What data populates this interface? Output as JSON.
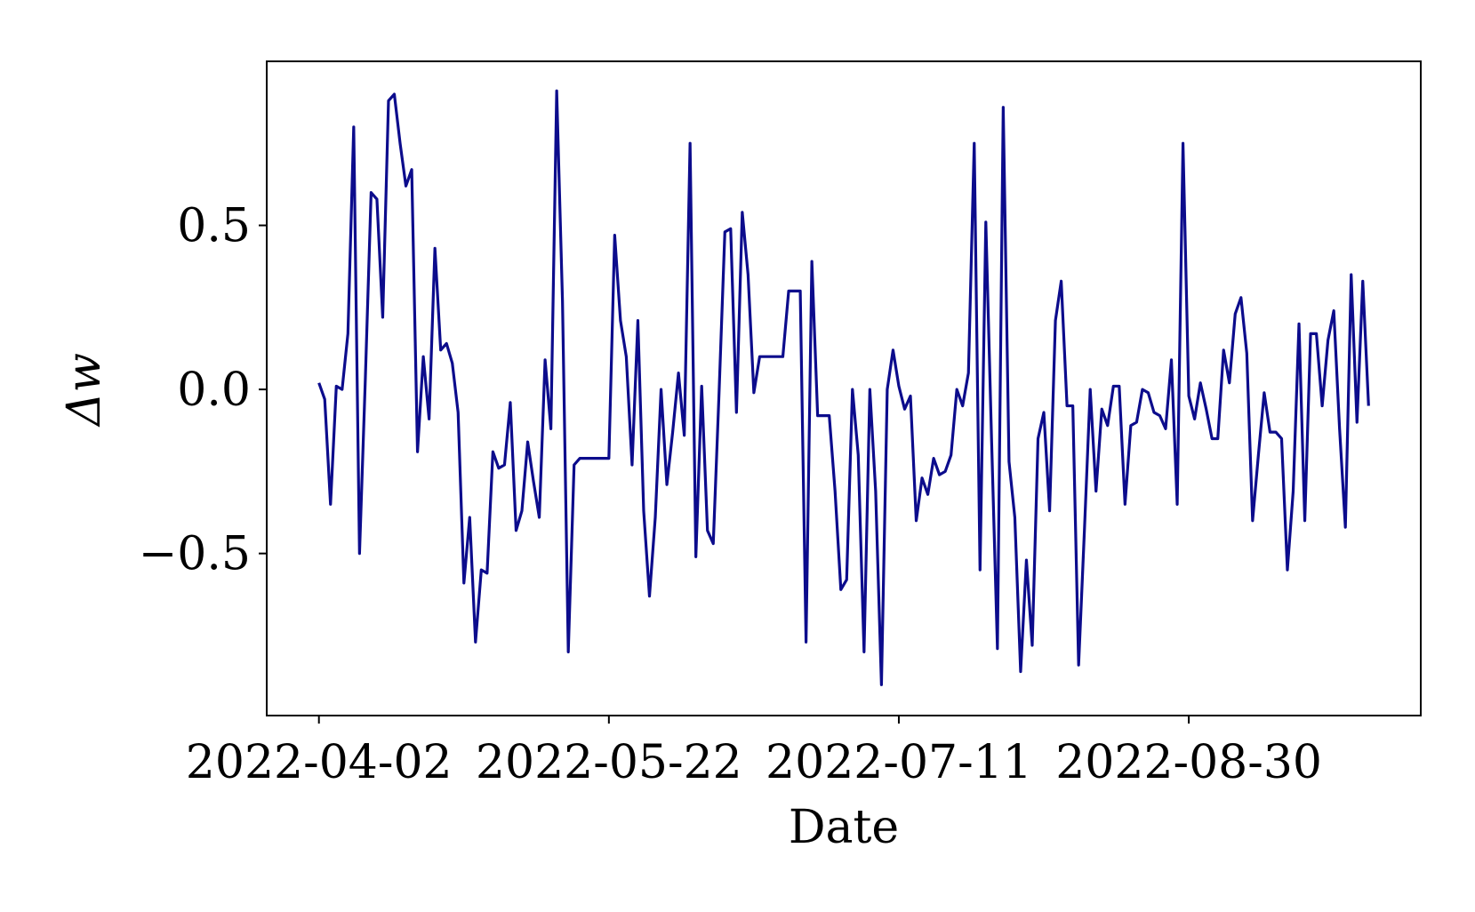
{
  "chart_data": {
    "type": "line",
    "xlabel": "Date",
    "ylabel": "Δw",
    "x": [
      "2022-04-02",
      "2022-04-03",
      "2022-04-04",
      "2022-04-05",
      "2022-04-06",
      "2022-04-07",
      "2022-04-08",
      "2022-04-09",
      "2022-04-10",
      "2022-04-11",
      "2022-04-12",
      "2022-04-13",
      "2022-04-14",
      "2022-04-15",
      "2022-04-16",
      "2022-04-17",
      "2022-04-18",
      "2022-04-19",
      "2022-04-20",
      "2022-04-21",
      "2022-04-22",
      "2022-04-23",
      "2022-04-24",
      "2022-04-25",
      "2022-04-26",
      "2022-04-27",
      "2022-04-28",
      "2022-04-29",
      "2022-04-30",
      "2022-05-01",
      "2022-05-02",
      "2022-05-03",
      "2022-05-04",
      "2022-05-05",
      "2022-05-06",
      "2022-05-07",
      "2022-05-08",
      "2022-05-09",
      "2022-05-10",
      "2022-05-11",
      "2022-05-12",
      "2022-05-13",
      "2022-05-14",
      "2022-05-15",
      "2022-05-16",
      "2022-05-17",
      "2022-05-18",
      "2022-05-19",
      "2022-05-20",
      "2022-05-21",
      "2022-05-22",
      "2022-05-23",
      "2022-05-24",
      "2022-05-25",
      "2022-05-26",
      "2022-05-27",
      "2022-05-28",
      "2022-05-29",
      "2022-05-30",
      "2022-05-31",
      "2022-06-01",
      "2022-06-02",
      "2022-06-03",
      "2022-06-04",
      "2022-06-05",
      "2022-06-06",
      "2022-06-07",
      "2022-06-08",
      "2022-06-09",
      "2022-06-10",
      "2022-06-11",
      "2022-06-12",
      "2022-06-13",
      "2022-06-14",
      "2022-06-15",
      "2022-06-16",
      "2022-06-17",
      "2022-06-18",
      "2022-06-19",
      "2022-06-20",
      "2022-06-21",
      "2022-06-22",
      "2022-06-23",
      "2022-06-24",
      "2022-06-25",
      "2022-06-26",
      "2022-06-27",
      "2022-06-28",
      "2022-06-29",
      "2022-06-30",
      "2022-07-01",
      "2022-07-02",
      "2022-07-03",
      "2022-07-04",
      "2022-07-05",
      "2022-07-06",
      "2022-07-07",
      "2022-07-08",
      "2022-07-09",
      "2022-07-10",
      "2022-07-11",
      "2022-07-12",
      "2022-07-13",
      "2022-07-14",
      "2022-07-15",
      "2022-07-16",
      "2022-07-17",
      "2022-07-18",
      "2022-07-19",
      "2022-07-20",
      "2022-07-21",
      "2022-07-22",
      "2022-07-23",
      "2022-07-24",
      "2022-07-25",
      "2022-07-26",
      "2022-07-27",
      "2022-07-28",
      "2022-07-29",
      "2022-07-30",
      "2022-07-31",
      "2022-08-01",
      "2022-08-02",
      "2022-08-03",
      "2022-08-04",
      "2022-08-05",
      "2022-08-06",
      "2022-08-07",
      "2022-08-08",
      "2022-08-09",
      "2022-08-10",
      "2022-08-11",
      "2022-08-12",
      "2022-08-13",
      "2022-08-14",
      "2022-08-15",
      "2022-08-16",
      "2022-08-17",
      "2022-08-18",
      "2022-08-19",
      "2022-08-20",
      "2022-08-21",
      "2022-08-22",
      "2022-08-23",
      "2022-08-24",
      "2022-08-25",
      "2022-08-26",
      "2022-08-27",
      "2022-08-28",
      "2022-08-29",
      "2022-08-30",
      "2022-08-31",
      "2022-09-01",
      "2022-09-02",
      "2022-09-03",
      "2022-09-04",
      "2022-09-05",
      "2022-09-06",
      "2022-09-07",
      "2022-09-08",
      "2022-09-09",
      "2022-09-10",
      "2022-09-11",
      "2022-09-12",
      "2022-09-13",
      "2022-09-14",
      "2022-09-15",
      "2022-09-16",
      "2022-09-17",
      "2022-09-18",
      "2022-09-19",
      "2022-09-20",
      "2022-09-21",
      "2022-09-22",
      "2022-09-23",
      "2022-09-24",
      "2022-09-25",
      "2022-09-26",
      "2022-09-27",
      "2022-09-28",
      "2022-09-29",
      "2022-09-30"
    ],
    "series": [
      {
        "color": "#0c0c8c",
        "values": [
          0.02,
          -0.03,
          -0.35,
          0.01,
          0.0,
          0.17,
          0.8,
          -0.5,
          0.03,
          0.6,
          0.58,
          0.22,
          0.88,
          0.9,
          0.75,
          0.62,
          0.67,
          -0.19,
          0.1,
          -0.09,
          0.43,
          0.12,
          0.14,
          0.08,
          -0.07,
          -0.59,
          -0.39,
          -0.77,
          -0.55,
          -0.56,
          -0.19,
          -0.24,
          -0.23,
          -0.04,
          -0.43,
          -0.37,
          -0.16,
          -0.28,
          -0.39,
          0.09,
          -0.12,
          0.91,
          0.27,
          -0.8,
          -0.23,
          -0.21,
          -0.21,
          -0.21,
          -0.21,
          -0.21,
          -0.21,
          0.47,
          0.21,
          0.1,
          -0.23,
          0.21,
          -0.37,
          -0.63,
          -0.39,
          0.0,
          -0.29,
          -0.13,
          0.05,
          -0.14,
          0.75,
          -0.51,
          0.01,
          -0.43,
          -0.47,
          -0.01,
          0.48,
          0.49,
          -0.07,
          0.54,
          0.35,
          -0.01,
          0.1,
          0.1,
          0.1,
          0.1,
          0.1,
          0.3,
          0.3,
          0.3,
          -0.77,
          0.39,
          -0.08,
          -0.08,
          -0.08,
          -0.31,
          -0.61,
          -0.58,
          0.0,
          -0.2,
          -0.8,
          0.0,
          -0.31,
          -0.9,
          0.0,
          0.12,
          0.01,
          -0.06,
          -0.02,
          -0.4,
          -0.27,
          -0.32,
          -0.21,
          -0.26,
          -0.25,
          -0.2,
          0.0,
          -0.05,
          0.05,
          0.75,
          -0.55,
          0.51,
          -0.16,
          -0.79,
          0.86,
          -0.22,
          -0.39,
          -0.86,
          -0.52,
          -0.78,
          -0.15,
          -0.07,
          -0.37,
          0.21,
          0.33,
          -0.05,
          -0.05,
          -0.84,
          -0.43,
          0.0,
          -0.31,
          -0.06,
          -0.11,
          0.01,
          0.01,
          -0.35,
          -0.11,
          -0.1,
          0.0,
          -0.01,
          -0.07,
          -0.08,
          -0.12,
          0.09,
          -0.35,
          0.75,
          -0.02,
          -0.09,
          0.02,
          -0.06,
          -0.15,
          -0.15,
          0.12,
          0.02,
          0.23,
          0.28,
          0.11,
          -0.4,
          -0.2,
          -0.01,
          -0.13,
          -0.13,
          -0.15,
          -0.55,
          -0.31,
          0.2,
          -0.4,
          0.17,
          0.17,
          -0.05,
          0.15,
          0.24,
          -0.12,
          -0.42,
          0.35,
          -0.1,
          0.33,
          -0.05
        ]
      }
    ],
    "xlim": [
      "2022-03-24",
      "2022-10-09"
    ],
    "xticks": [
      "2022-04-02",
      "2022-05-22",
      "2022-07-11",
      "2022-08-30"
    ],
    "ylim": [
      -0.994,
      1.0
    ],
    "yticks": [
      {
        "value": -0.5,
        "label": "−0.5"
      },
      {
        "value": 0,
        "label": "0.0"
      },
      0.5
    ],
    "grid": false
  }
}
